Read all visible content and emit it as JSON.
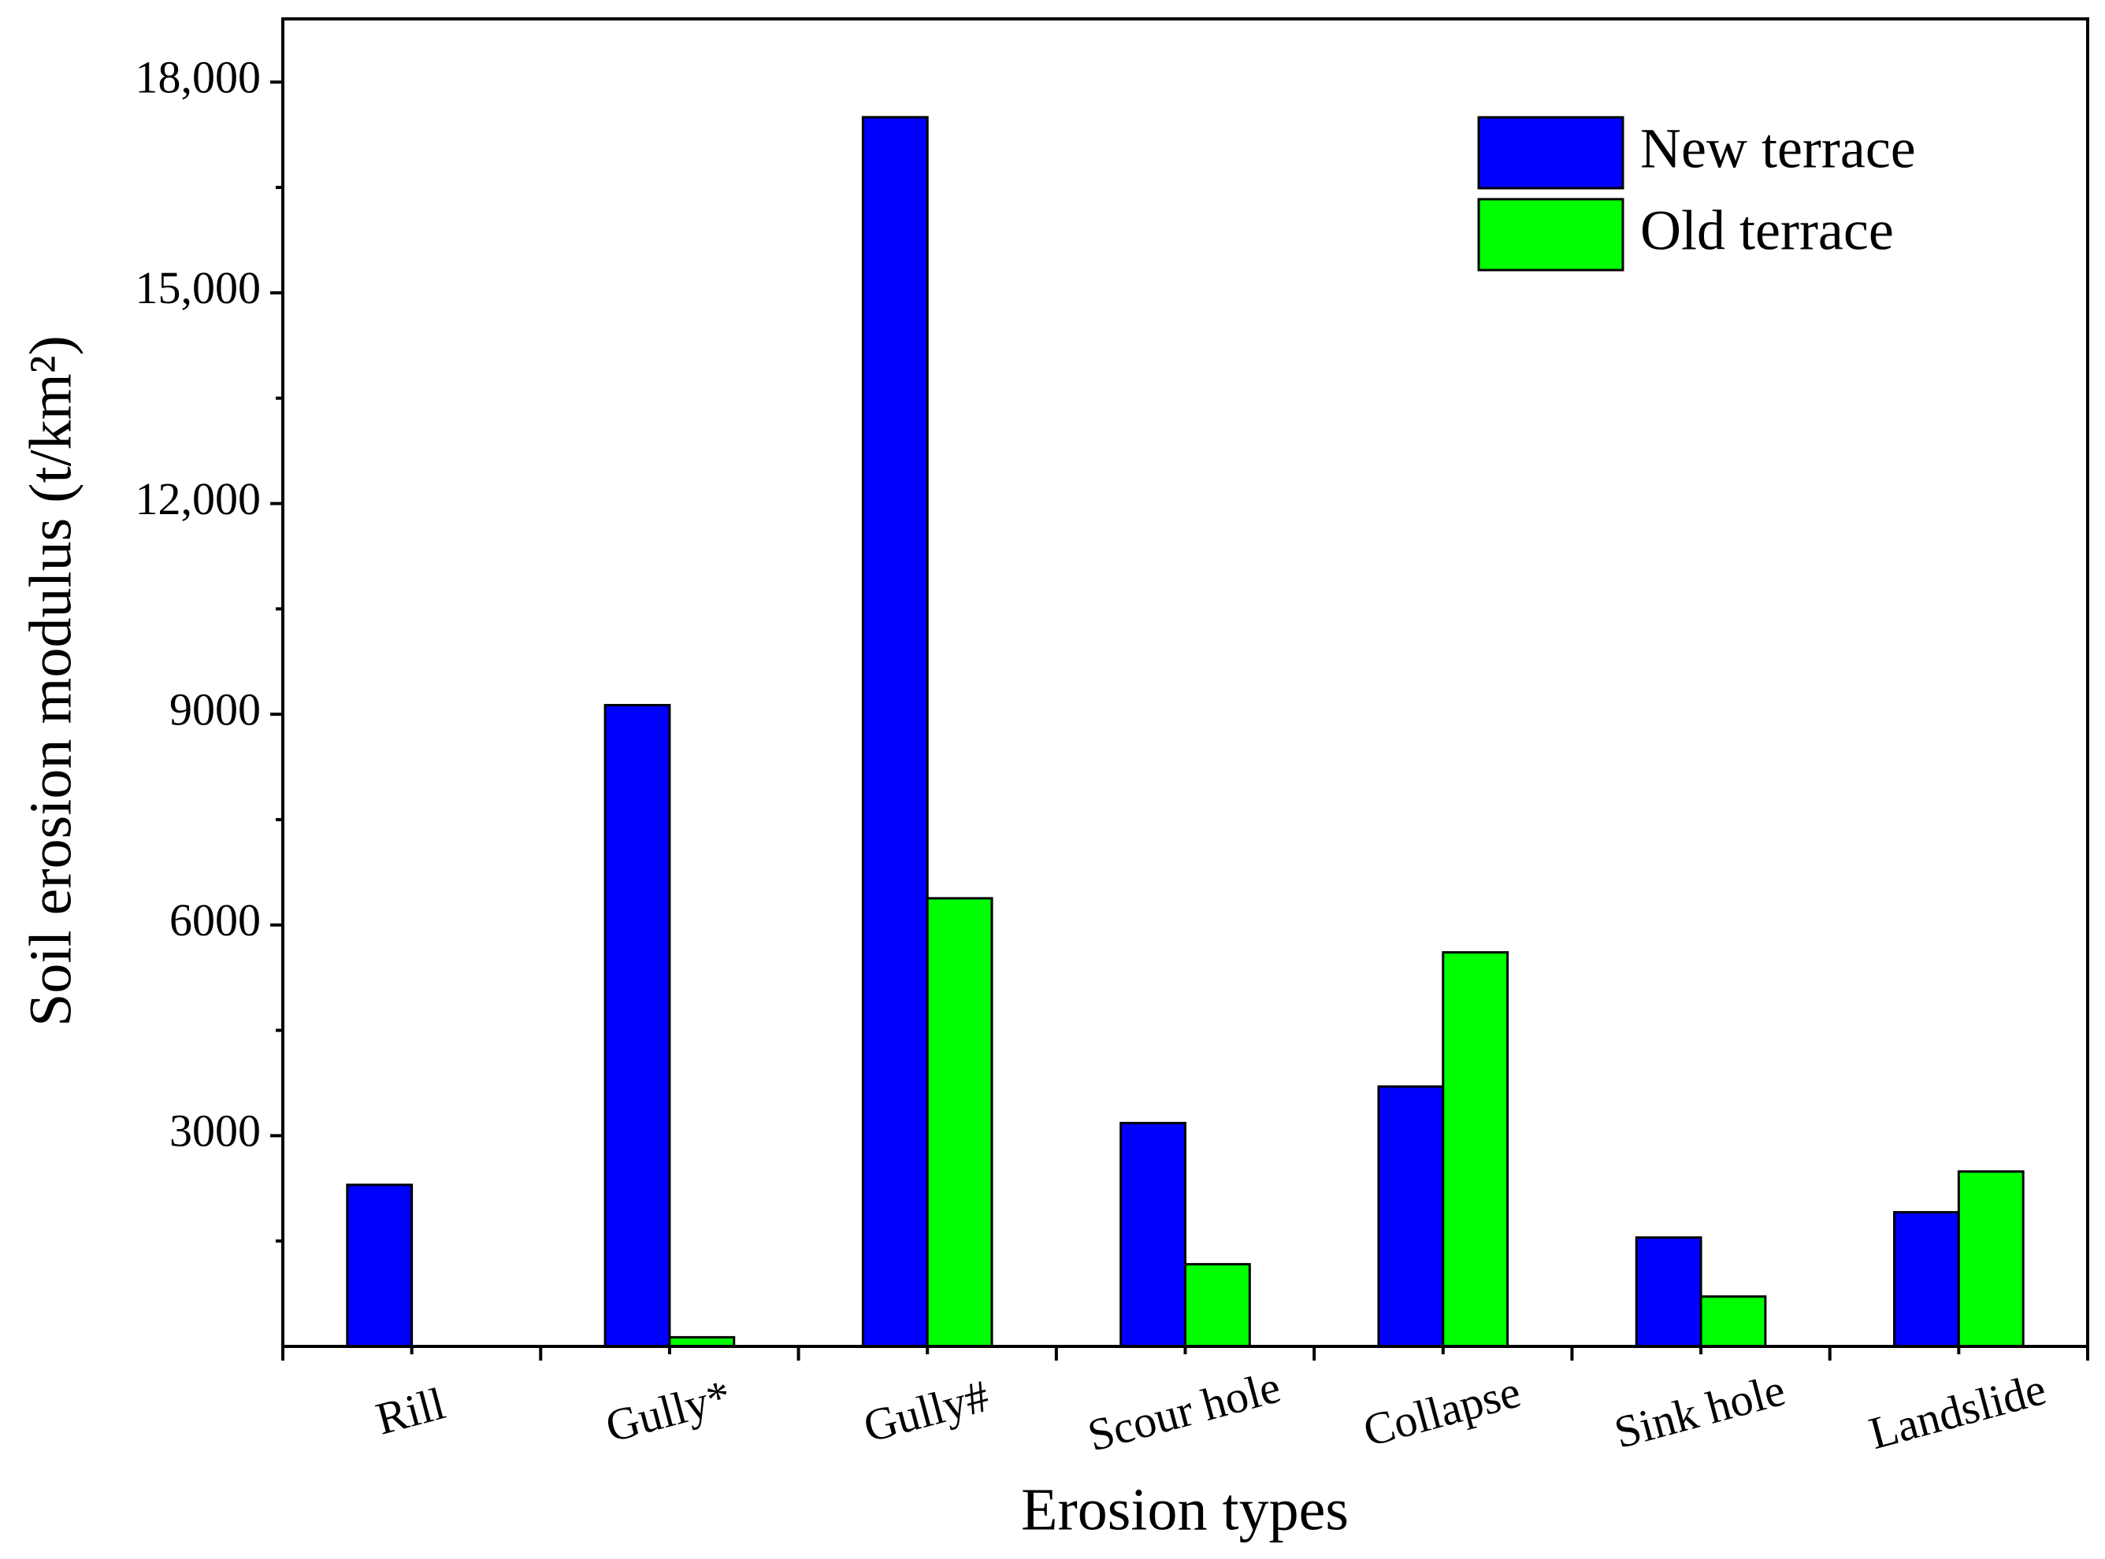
{
  "chart_data": {
    "type": "bar",
    "x_label": "Erosion types",
    "y_label": "Soil erosion modulus (t/km²)",
    "categories": [
      "Rill",
      "Gully*",
      "Gully#",
      "Scour hole",
      "Collapse",
      "Sink hole",
      "Landslide"
    ],
    "series": [
      {
        "name": "New terrace",
        "color": "#0000ff",
        "values": [
          2300,
          9130,
          17500,
          3180,
          3700,
          1550,
          1910
        ]
      },
      {
        "name": "Old terrace",
        "color": "#00ff00",
        "values": [
          0,
          130,
          6380,
          1170,
          5610,
          710,
          2490
        ]
      }
    ],
    "ylim": [
      0,
      18900
    ],
    "yticks": [
      3000,
      6000,
      9000,
      {
        "value": 12000,
        "label": "12,000"
      },
      {
        "value": 15000,
        "label": "15,000"
      },
      {
        "value": 18000,
        "label": "18,000"
      }
    ],
    "yticks_minor": [
      1500,
      4500,
      7500,
      10500,
      13500,
      16500
    ],
    "grid": false,
    "legend": "upper right"
  }
}
